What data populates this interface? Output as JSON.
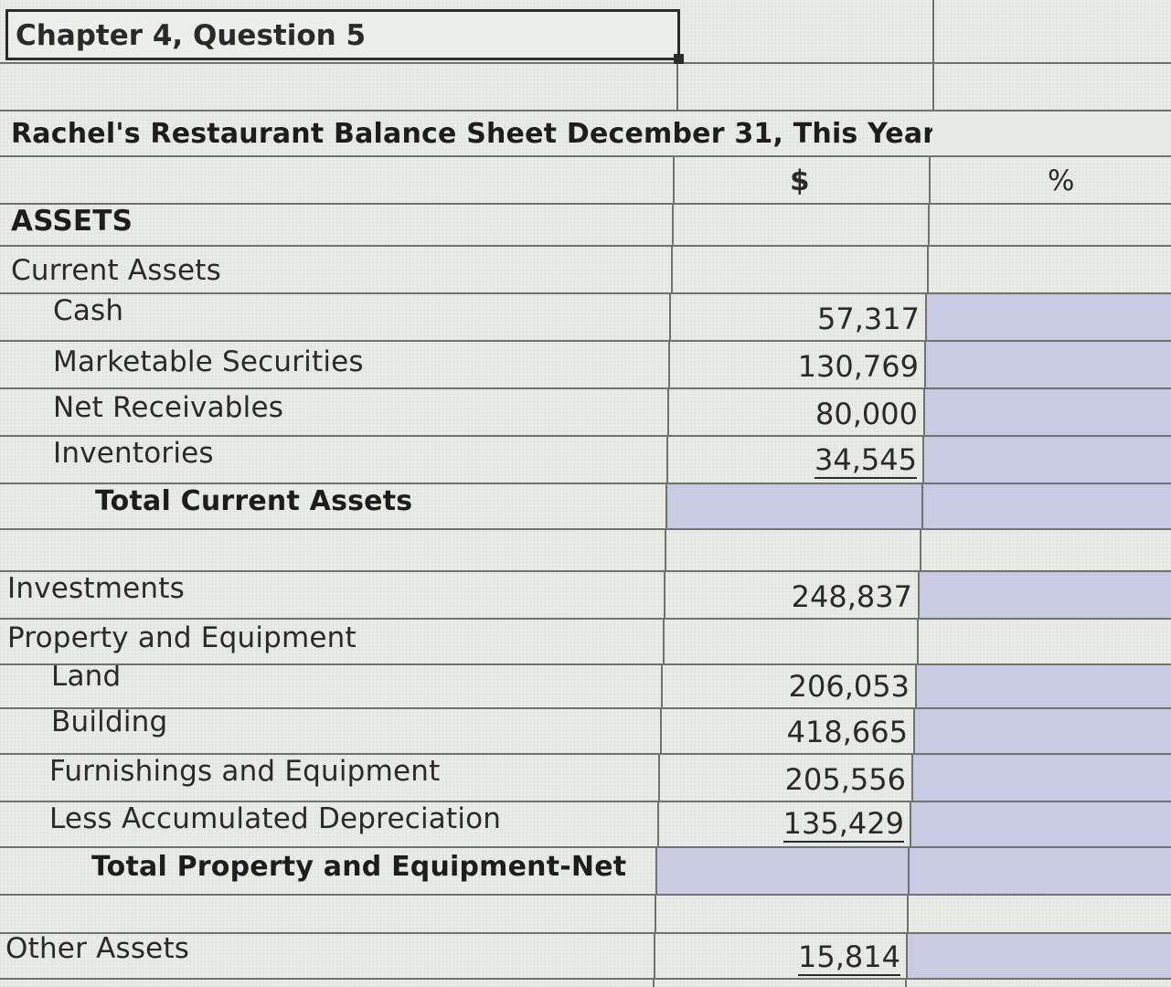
{
  "title": "Chapter 4, Question 5",
  "sheet_heading": "Rachel's Restaurant Balance Sheet December 31, This Year",
  "headers": {
    "dollar": "$",
    "percent": "%"
  },
  "rows": {
    "assets": "ASSETS",
    "current_assets": "Current Assets",
    "cash": {
      "label": "Cash",
      "amount": "57,317"
    },
    "marketable_securities": {
      "label": "Marketable Securities",
      "amount": "130,769"
    },
    "net_receivables": {
      "label": "Net Receivables",
      "amount": "80,000"
    },
    "inventories": {
      "label": "Inventories",
      "amount": "34,545"
    },
    "total_current_assets": "Total Current Assets",
    "investments": {
      "label": "Investments",
      "amount": "248,837"
    },
    "property_and_equipment": "Property and Equipment",
    "land": {
      "label": "Land",
      "amount": "206,053"
    },
    "building": {
      "label": "Building",
      "amount": "418,665"
    },
    "furnishings": {
      "label": "Furnishings and Equipment",
      "amount": "205,556"
    },
    "accumulated_depreciation": {
      "label": "Less Accumulated Depreciation",
      "amount": "135,429"
    },
    "total_pe_net": "Total Property and Equipment-Net",
    "other_assets": {
      "label": "Other Assets",
      "amount": "15,814"
    }
  },
  "colors": {
    "grid_line": "#6f736f",
    "shaded_cell": "#c9cbe2",
    "background": "#e9ebe7"
  }
}
